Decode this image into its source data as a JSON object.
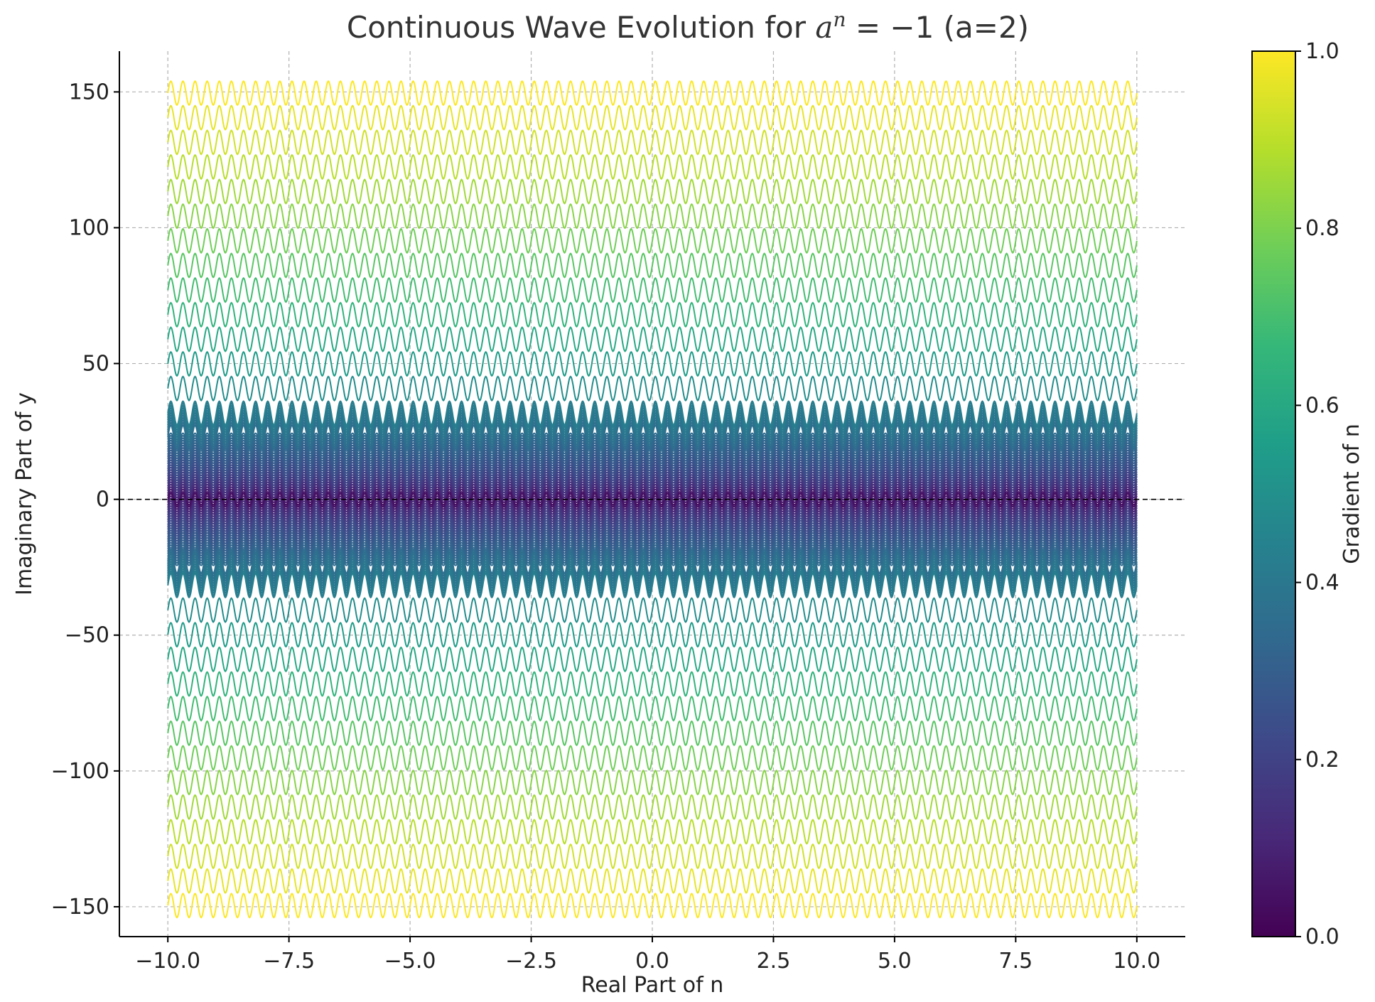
{
  "chart_data": {
    "type": "line",
    "title": {
      "prefix": "Continuous Wave Evolution for ",
      "base": "a",
      "exponent": "n",
      "equation": " = −1",
      "suffix": " (a=2)"
    },
    "xlabel": "Real Part of n",
    "ylabel": "Imaginary Part of y",
    "xlim": [
      -11,
      11
    ],
    "ylim": [
      -161,
      165
    ],
    "xticks": [
      "−10.0",
      "−7.5",
      "−5.0",
      "−2.5",
      "0.0",
      "2.5",
      "5.0",
      "7.5",
      "10.0"
    ],
    "xtick_values": [
      -10,
      -7.5,
      -5,
      -2.5,
      0,
      2.5,
      5,
      7.5,
      10
    ],
    "yticks": [
      "−150",
      "−100",
      "−50",
      "0",
      "50",
      "100",
      "150"
    ],
    "ytick_values": [
      -150,
      -100,
      -50,
      0,
      50,
      100,
      150
    ],
    "grid": true,
    "wave": {
      "x_range": [
        -10,
        10
      ],
      "cycles_over_range": 80,
      "amplitude_fraction": 0.4,
      "offsets_description": "odd multiples of pi/2 scaled: y_k = ±(2k+1)·π/ln(2) → offsets",
      "offsets_positive": [
        4.53,
        13.6,
        22.66,
        31.73,
        40.79,
        49.86,
        58.92,
        67.99,
        77.05,
        86.12,
        95.18,
        104.25,
        113.31,
        122.38,
        131.44,
        140.51,
        149.57
      ],
      "dense_spacing_near_zero": true,
      "max_offset": 150
    },
    "reference_line": {
      "y": 0,
      "style": "dashed",
      "color": "#000000"
    },
    "colorbar": {
      "label": "Gradient of n",
      "ticks": [
        "0.0",
        "0.2",
        "0.4",
        "0.6",
        "0.8",
        "1.0"
      ],
      "tick_values": [
        0,
        0.2,
        0.4,
        0.6,
        0.8,
        1.0
      ],
      "colormap": "viridis"
    },
    "colors": {
      "viridis": [
        "#440154",
        "#482878",
        "#3e4989",
        "#31688e",
        "#26828e",
        "#1f9e89",
        "#35b779",
        "#6ece58",
        "#b5de2b",
        "#fde725"
      ],
      "grid": "#b0b0b0",
      "axis": "#000000"
    }
  }
}
